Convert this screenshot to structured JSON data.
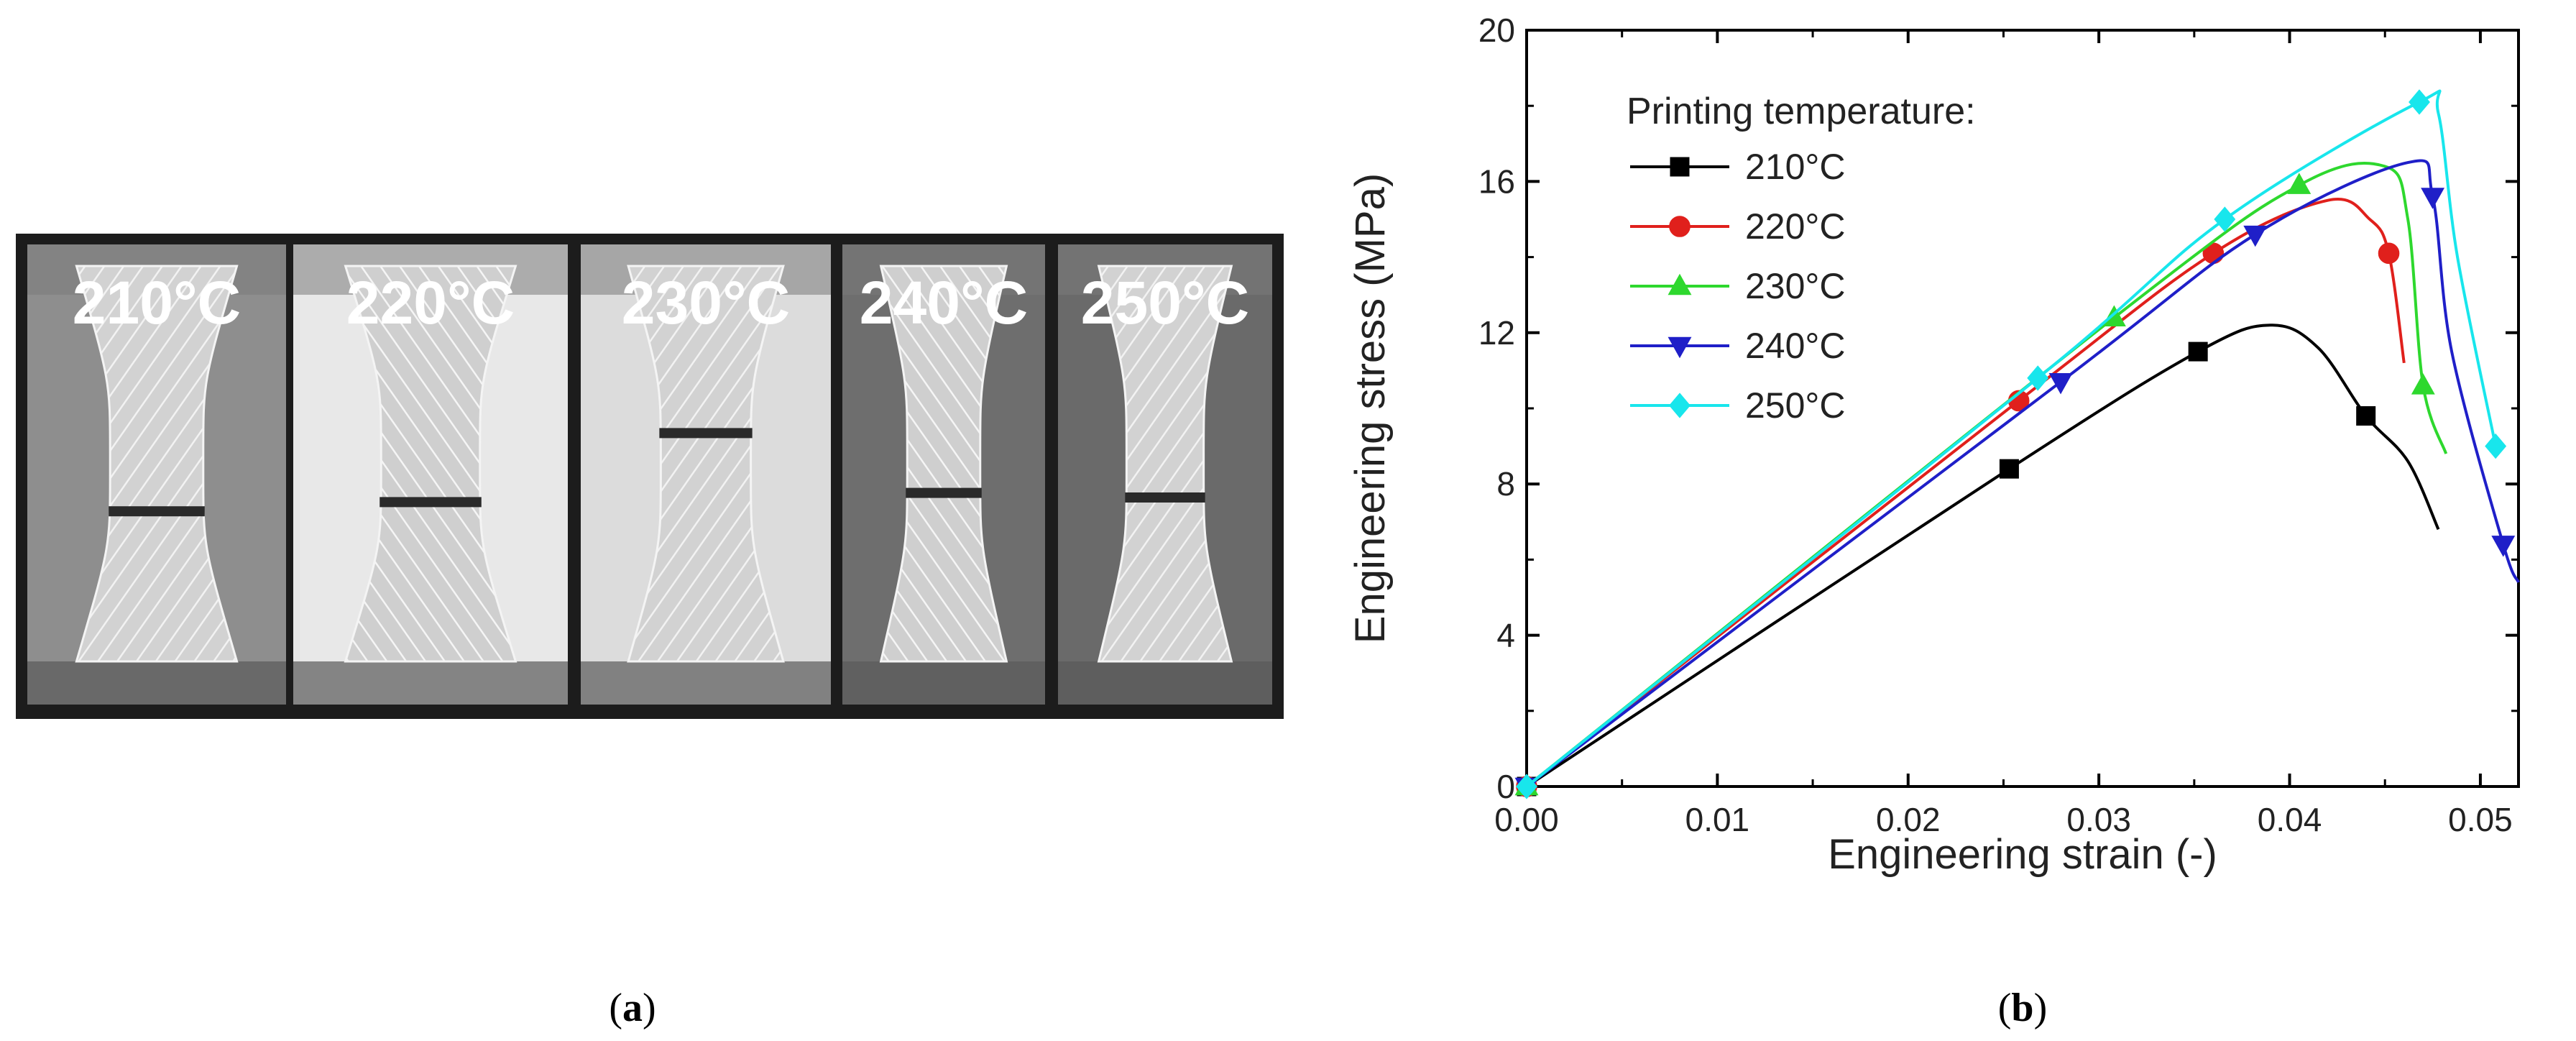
{
  "panel_a": {
    "caption": "a",
    "specimens": [
      {
        "label": "210°C",
        "background": "#8e8e8e",
        "break_fraction": 0.58
      },
      {
        "label": "220°C",
        "background": "#e8e8e8",
        "break_fraction": 0.56
      },
      {
        "label": "230°C",
        "background": "#dcdcdc",
        "break_fraction": 0.41
      },
      {
        "label": "240°C",
        "background": "#6e6e6e",
        "break_fraction": 0.54
      },
      {
        "label": "250°C",
        "background": "#6a6a6a",
        "break_fraction": 0.55
      }
    ]
  },
  "panel_b": {
    "caption": "b"
  },
  "chart_data": {
    "type": "line",
    "title": "",
    "xlabel": "Engineering strain (-)",
    "ylabel": "Engineering stress (MPa)",
    "xlim": [
      0,
      0.052
    ],
    "ylim": [
      0,
      20
    ],
    "xticks": [
      "0.00",
      "0.01",
      "0.02",
      "0.03",
      "0.04",
      "0.05"
    ],
    "yticks": [
      "0",
      "4",
      "8",
      "12",
      "16",
      "20"
    ],
    "legend_title": "Printing temperature:",
    "legend_position": "top-left",
    "series": [
      {
        "name": "210°C",
        "color": "#000000",
        "marker": "square",
        "x": [
          0,
          0.0253,
          0.0352,
          0.039,
          0.0415,
          0.044,
          0.0462,
          0.0478
        ],
        "y": [
          0,
          8.4,
          11.5,
          12.2,
          11.6,
          9.8,
          8.6,
          6.8
        ],
        "markers": [
          [
            0,
            0
          ],
          [
            0.0253,
            8.4
          ],
          [
            0.0352,
            11.5
          ],
          [
            0.044,
            9.8
          ]
        ]
      },
      {
        "name": "220°C",
        "color": "#e0201c",
        "marker": "circle",
        "x": [
          0,
          0.0258,
          0.036,
          0.042,
          0.0442,
          0.0452,
          0.046
        ],
        "y": [
          0,
          10.2,
          14.1,
          15.5,
          15.0,
          14.1,
          11.2
        ],
        "markers": [
          [
            0,
            0
          ],
          [
            0.0258,
            10.2
          ],
          [
            0.036,
            14.1
          ],
          [
            0.0452,
            14.1
          ]
        ]
      },
      {
        "name": "230°C",
        "color": "#2ed82e",
        "marker": "triangle-up",
        "x": [
          0,
          0.0308,
          0.0405,
          0.045,
          0.0462,
          0.047,
          0.0482
        ],
        "y": [
          0,
          12.4,
          15.9,
          16.4,
          15.0,
          10.6,
          8.8
        ],
        "markers": [
          [
            0,
            0
          ],
          [
            0.0308,
            12.4
          ],
          [
            0.0405,
            15.9
          ],
          [
            0.047,
            10.6
          ]
        ]
      },
      {
        "name": "240°C",
        "color": "#1f1fc8",
        "marker": "triangle-down",
        "x": [
          0,
          0.028,
          0.0382,
          0.0462,
          0.0475,
          0.0485,
          0.0512,
          0.052
        ],
        "y": [
          0,
          10.7,
          14.6,
          16.5,
          15.6,
          11.5,
          6.4,
          5.4
        ],
        "markers": [
          [
            0,
            0
          ],
          [
            0.028,
            10.7
          ],
          [
            0.0382,
            14.6
          ],
          [
            0.0475,
            15.6
          ],
          [
            0.0512,
            6.4
          ]
        ]
      },
      {
        "name": "250°C",
        "color": "#18e6ec",
        "marker": "diamond",
        "x": [
          0,
          0.0268,
          0.0366,
          0.0468,
          0.0478,
          0.0488,
          0.0508
        ],
        "y": [
          0,
          10.8,
          15.0,
          18.1,
          17.8,
          14.0,
          9.0
        ],
        "markers": [
          [
            0,
            0
          ],
          [
            0.0268,
            10.8
          ],
          [
            0.0366,
            15.0
          ],
          [
            0.0468,
            18.1
          ],
          [
            0.0508,
            9.0
          ]
        ]
      }
    ]
  }
}
